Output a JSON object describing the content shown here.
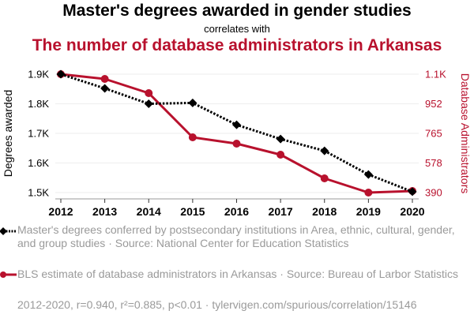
{
  "header": {
    "title": "Master's degrees awarded in gender studies",
    "connector": "correlates with",
    "subtitle": "The number of database administrators in Arkansas"
  },
  "colors": {
    "series1": "#000000",
    "series2": "#b8112d",
    "grid": "#eeeeee",
    "axis": "#999999",
    "muted_text": "#9a9a9a"
  },
  "chart_data": {
    "type": "line",
    "title": "Master's degrees awarded in gender studies correlates with The number of database administrators in Arkansas",
    "x": [
      2012,
      2013,
      2014,
      2015,
      2016,
      2017,
      2018,
      2019,
      2020
    ],
    "xlabel": "",
    "x_tick_labels": [
      "2012",
      "2013",
      "2014",
      "2015",
      "2016",
      "2017",
      "2018",
      "2019",
      "2020"
    ],
    "y_left": {
      "label": "Degrees awarded",
      "range": [
        1500,
        1900
      ],
      "ticks": [
        1500,
        1600,
        1700,
        1800,
        1900
      ],
      "tick_labels": [
        "1.5K",
        "1.6K",
        "1.7K",
        "1.8K",
        "1.9K"
      ]
    },
    "y_right": {
      "label": "Database Administrators",
      "range": [
        390,
        1140
      ],
      "ticks": [
        390,
        578,
        765,
        952,
        1140
      ],
      "tick_labels": [
        "390",
        "578",
        "765",
        "952",
        "1.1K"
      ]
    },
    "grid": true,
    "series": [
      {
        "name": "Master's degrees conferred by postsecondary institutions in Area, ethnic, cultural, gender, and group studies",
        "axis": "left",
        "style": "dotted",
        "marker": "diamond",
        "color": "#000000",
        "values": [
          1900,
          1852,
          1800,
          1803,
          1729,
          1681,
          1641,
          1561,
          1503
        ]
      },
      {
        "name": "BLS estimate of database administrators in Arkansas",
        "axis": "right",
        "style": "solid",
        "marker": "circle",
        "color": "#b8112d",
        "values": [
          1140,
          1110,
          1020,
          740,
          700,
          630,
          480,
          390,
          400
        ]
      }
    ]
  },
  "legend": {
    "items": [
      {
        "label": "Master's degrees conferred by postsecondary institutions in Area, ethnic, cultural, gender, and group studies · Source: National Center for Education Statistics"
      },
      {
        "label": "BLS estimate of database administrators in Arkansas · Source: Bureau of Larbor Statistics"
      }
    ]
  },
  "footer": {
    "text": "2012-2020, r=0.940, r²=0.885, p<0.01 · tylervigen.com/spurious/correlation/15146"
  }
}
